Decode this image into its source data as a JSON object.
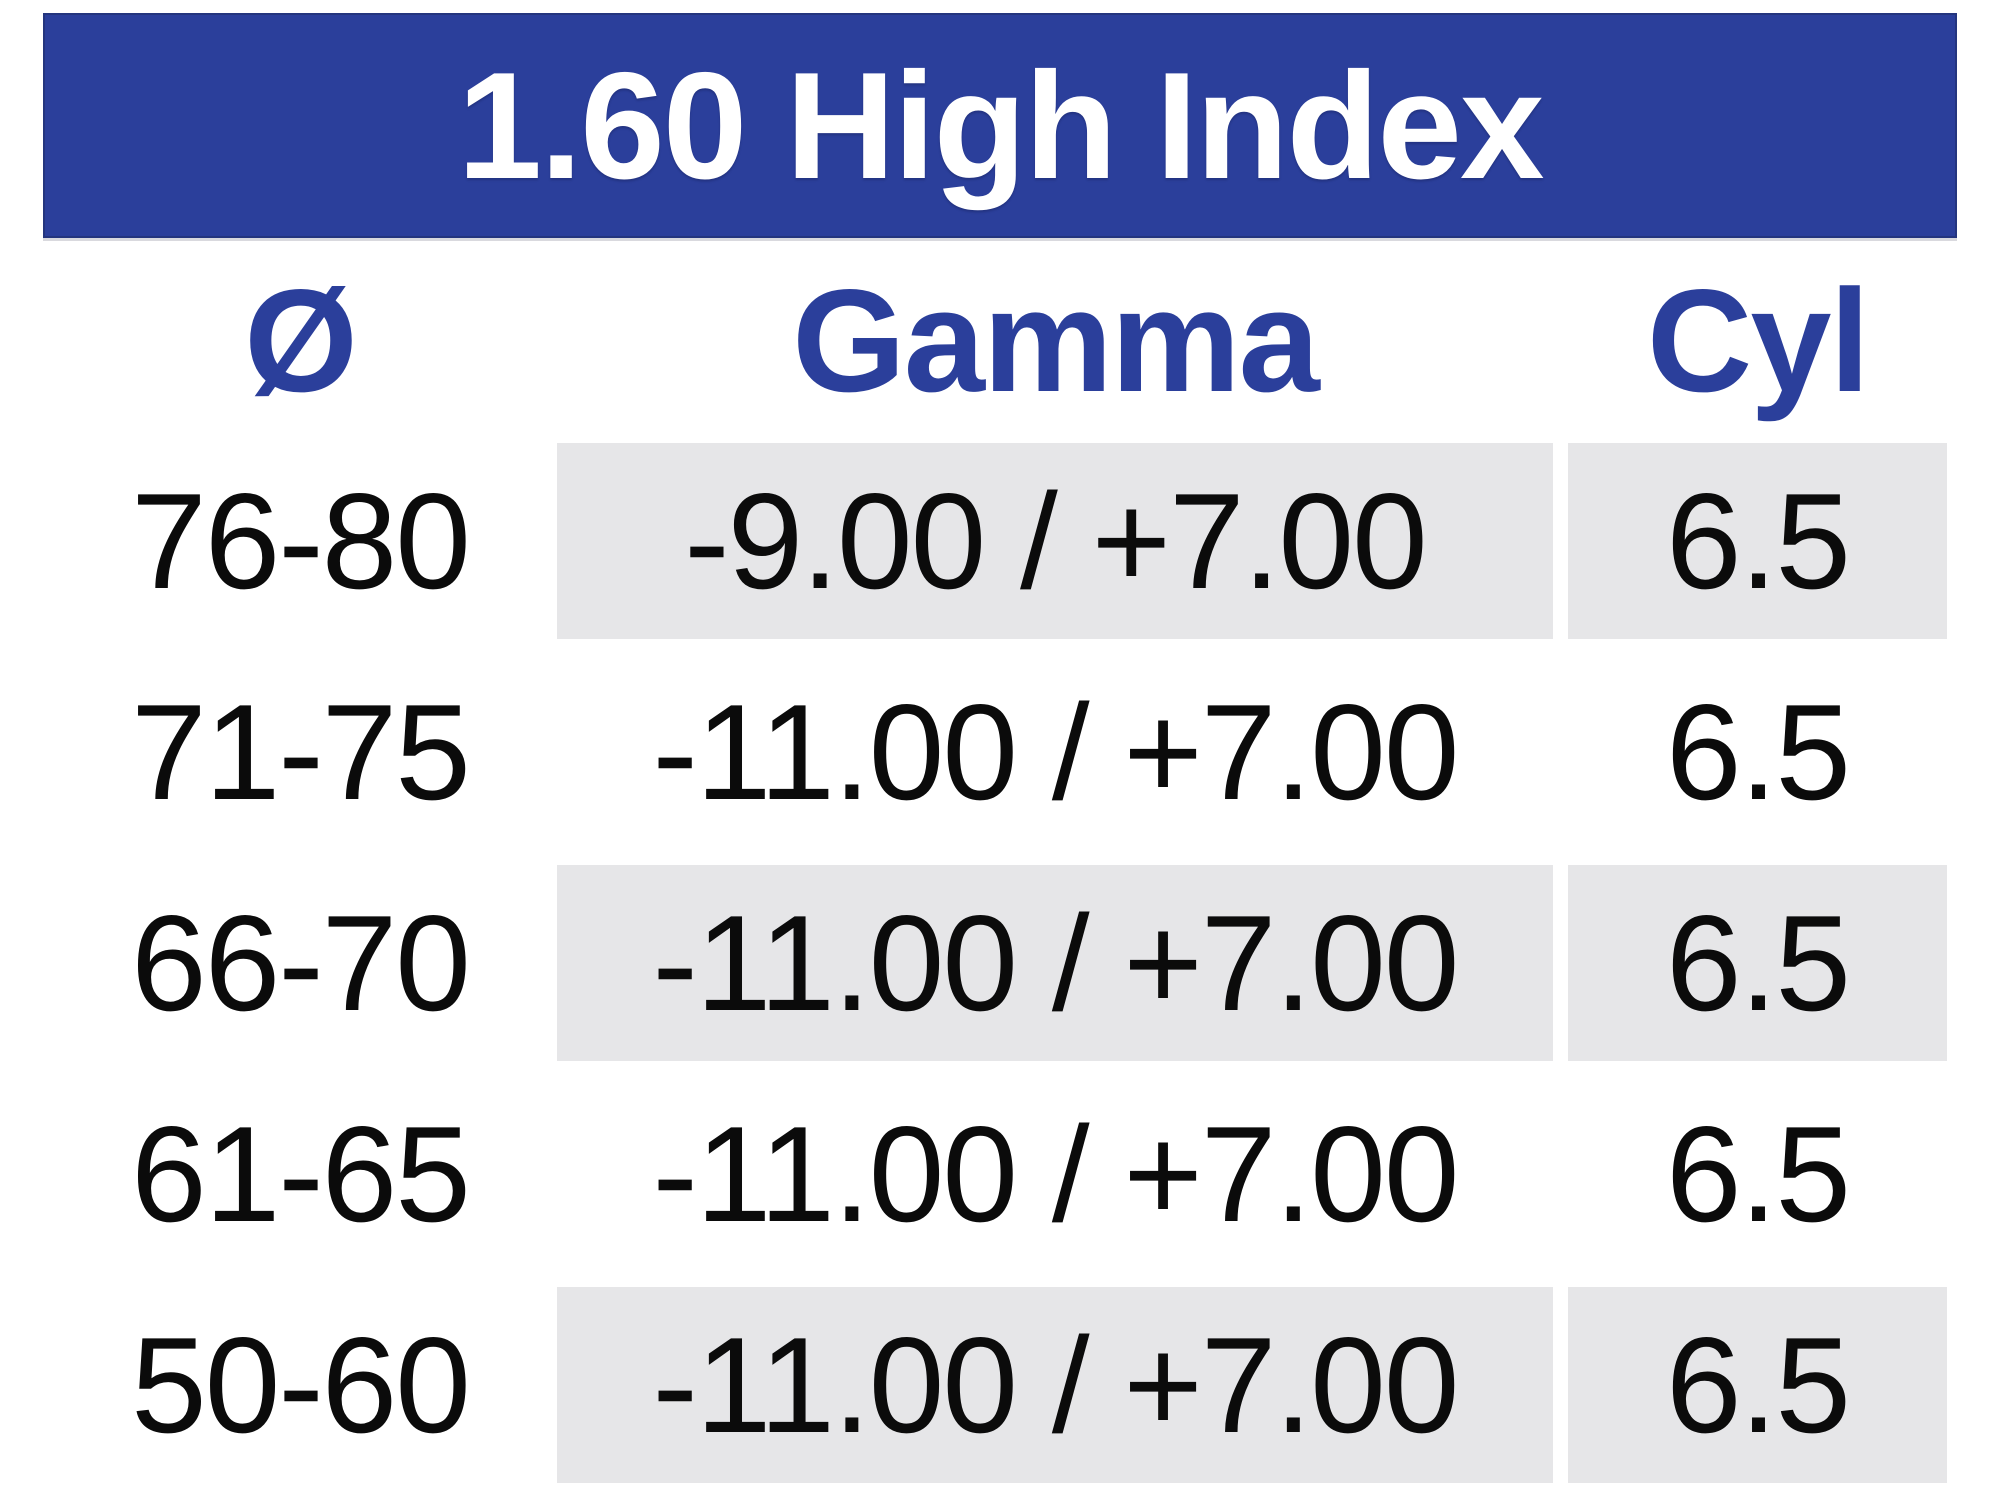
{
  "title": "1.60 High Index",
  "colors": {
    "title_bar_blue": "#2B3F9B",
    "title_text_white": "#FFFFFF",
    "header_text_blue": "#2B3F9B",
    "stripe_gray": "#E6E6E8",
    "data_text_black": "#0B0B0B",
    "page_background": "#FFFFFF"
  },
  "chart_data": {
    "type": "table",
    "title": "1.60 High Index",
    "columns": [
      "Ø",
      "Gamma",
      "Cyl"
    ],
    "rows": [
      {
        "diameter": "76-80",
        "gamma": "-9.00 / +7.00",
        "cyl": "6.5"
      },
      {
        "diameter": "71-75",
        "gamma": "-11.00 / +7.00",
        "cyl": "6.5"
      },
      {
        "diameter": "66-70",
        "gamma": "-11.00 / +7.00",
        "cyl": "6.5"
      },
      {
        "diameter": "61-65",
        "gamma": "-11.00 / +7.00",
        "cyl": "6.5"
      },
      {
        "diameter": "50-60",
        "gamma": "-11.00 / +7.00",
        "cyl": "6.5"
      }
    ],
    "layout_hints": {
      "striped_row_indices": [
        0,
        2,
        4
      ],
      "stripes_cover_columns": [
        "Gamma",
        "Cyl"
      ],
      "header_style": "blue bold text on white",
      "title_style": "white bold text on blue bar"
    }
  }
}
